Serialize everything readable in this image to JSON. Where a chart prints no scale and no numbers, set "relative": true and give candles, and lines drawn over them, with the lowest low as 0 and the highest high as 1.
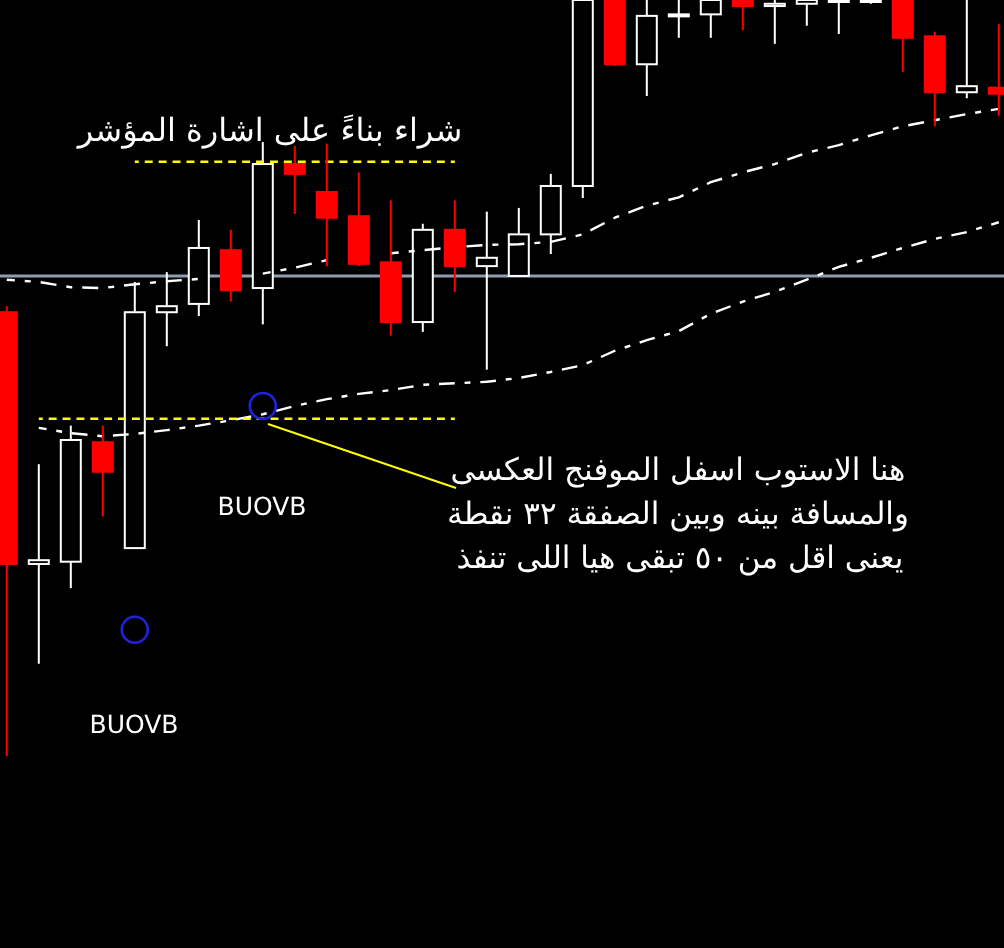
{
  "chart_data": {
    "type": "candlestick",
    "relative": true,
    "categories": [
      null,
      null,
      null,
      null,
      null,
      null,
      null,
      null,
      null,
      null,
      null,
      null,
      null,
      null,
      null,
      null,
      null,
      null,
      null,
      null,
      null,
      null,
      null,
      null,
      null,
      null,
      null,
      null,
      null,
      null,
      null,
      null
    ],
    "ohlc": [
      [
        0.587,
        0.595,
        0,
        0.254
      ],
      [
        0.254,
        0.386,
        0.122,
        0.259
      ],
      [
        0.257,
        0.437,
        0.222,
        0.418
      ],
      [
        0.415,
        0.437,
        0.317,
        0.376
      ],
      [
        0.275,
        0.627,
        0.275,
        0.587
      ],
      [
        0.587,
        0.64,
        0.542,
        0.595
      ],
      [
        0.598,
        0.709,
        0.582,
        0.672
      ],
      [
        0.669,
        0.696,
        0.601,
        0.616
      ],
      [
        0.619,
        0.812,
        0.571,
        0.783
      ],
      [
        0.783,
        0.807,
        0.717,
        0.77
      ],
      [
        0.746,
        0.81,
        0.648,
        0.712
      ],
      [
        0.714,
        0.772,
        0.648,
        0.651
      ],
      [
        0.653,
        0.735,
        0.556,
        0.574
      ],
      [
        0.574,
        0.704,
        0.561,
        0.696
      ],
      [
        0.696,
        0.735,
        0.614,
        0.648
      ],
      [
        0.648,
        0.72,
        0.511,
        0.659
      ],
      [
        0.635,
        0.725,
        0.635,
        0.69
      ],
      [
        0.69,
        0.77,
        0.664,
        0.754
      ],
      [
        0.754,
        1,
        0.738,
        1
      ],
      [
        1,
        1,
        0.913,
        0.915
      ],
      [
        0.915,
        1,
        0.873,
        0.979
      ],
      [
        0.979,
        1,
        0.95,
        0.981
      ],
      [
        0.981,
        1,
        0.95,
        1
      ],
      [
        1,
        1,
        0.96,
        0.992
      ],
      [
        0.992,
        1,
        0.942,
        0.995
      ],
      [
        0.995,
        1,
        0.966,
        1
      ],
      [
        1,
        1,
        0.955,
        1
      ],
      [
        1,
        1,
        0.995,
        1
      ],
      [
        1,
        1,
        0.905,
        0.95
      ],
      [
        0.952,
        0.958,
        0.833,
        0.878
      ],
      [
        0.878,
        1,
        0.87,
        0.886
      ],
      [
        0.884,
        0.968,
        0.847,
        0.876
      ]
    ],
    "colors": [
      "#ff0000",
      "#ffffff",
      "#ffffff",
      "#ff0000",
      "#ffffff",
      "#ffffff",
      "#ffffff",
      "#ff0000",
      "#ffffff",
      "#ff0000",
      "#ff0000",
      "#ff0000",
      "#ff0000",
      "#ffffff",
      "#ff0000",
      "#ffffff",
      "#ffffff",
      "#ffffff",
      "#ffffff",
      "#ff0000",
      "#ffffff",
      "#ffffff",
      "#ffffff",
      "#ff0000",
      "#ffffff",
      "#ffffff",
      "#ffffff",
      "#ffffff",
      "#ff0000",
      "#ff0000",
      "#ffffff",
      "#ff0000"
    ],
    "series": [
      {
        "type": "line",
        "color": "#ffffff",
        "line_style": "dashed",
        "values": [
          0.63,
          0.627,
          0.62,
          0.619,
          0.624,
          0.628,
          0.631,
          null,
          0.638,
          0.646,
          0.656,
          null,
          0.665,
          0.669,
          0.673,
          0.676,
          0.677,
          0.68,
          0.69,
          0.712,
          0.728,
          0.739,
          0.759,
          0.772,
          0.783,
          0.798,
          0.808,
          0.821,
          0.833,
          0.841,
          0.849,
          0.856
        ]
      },
      {
        "type": "line",
        "color": "#ffffff",
        "line_style": "dashed",
        "values": [
          null,
          0.434,
          0.427,
          0.423,
          0.426,
          0.431,
          0.437,
          0.444,
          0.452,
          0.463,
          0.472,
          0.479,
          0.484,
          0.491,
          0.493,
          0.495,
          0.5,
          0.508,
          0.517,
          0.536,
          0.55,
          0.562,
          0.585,
          0.601,
          0.614,
          0.63,
          0.647,
          0.659,
          0.672,
          0.684,
          0.693,
          0.706
        ]
      },
      {
        "type": "line",
        "color": "#ffff00",
        "line_style": "dotted",
        "values": [
          null,
          null,
          null,
          null,
          0.786,
          0.786,
          0.786,
          0.786,
          0.786,
          0.786,
          0.786,
          0.786,
          0.786,
          0.786,
          0.786,
          null,
          null,
          null,
          null,
          null,
          null,
          null,
          null,
          null,
          null,
          null,
          null,
          null,
          null,
          null,
          null,
          null
        ]
      },
      {
        "type": "line",
        "color": "#ffff00",
        "line_style": "dotted",
        "values": [
          null,
          0.446,
          0.446,
          0.446,
          0.446,
          0.446,
          0.446,
          0.446,
          0.446,
          0.446,
          0.446,
          0.446,
          0.446,
          0.446,
          0.446,
          null,
          null,
          null,
          null,
          null,
          null,
          null,
          null,
          null,
          null,
          null,
          null,
          null,
          null,
          null,
          null,
          null
        ]
      },
      {
        "type": "scatter",
        "color": "#2020e0",
        "marker": "circle",
        "values": [
          null,
          null,
          null,
          null,
          0.167,
          null,
          null,
          null,
          0.463,
          null,
          null,
          null,
          null,
          null,
          null,
          null,
          null,
          null,
          null,
          null,
          null,
          null,
          null,
          null,
          null,
          null,
          null,
          null,
          null,
          null,
          null,
          null
        ]
      }
    ],
    "ref_lines": [
      {
        "axis": "y",
        "value": 0.635,
        "color": "#8e9bb0"
      }
    ],
    "annotations": [
      "شراء بناءً على اشارة المؤشر",
      "هنا الاستوب اسفل الموفنج العكسى",
      "والمسافة بينه وبين الصفقة ٣٢ نقطة",
      "يعنى اقل من ٥٠ تبقى هيا اللى تنفذ",
      "BUOVB",
      "BUOVB"
    ]
  }
}
